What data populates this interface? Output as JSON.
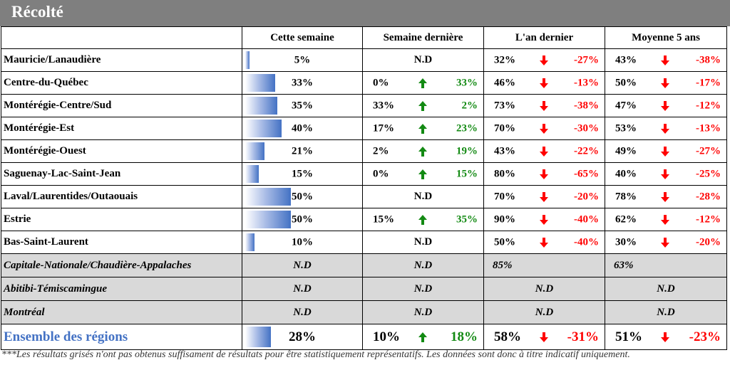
{
  "title": "Récolté",
  "headers": {
    "cette_semaine": "Cette semaine",
    "semaine_derniere": "Semaine dernière",
    "an_dernier": "L'an dernier",
    "moyenne_5_ans": "Moyenne 5 ans"
  },
  "rows": [
    {
      "region": "Mauricie/Lanaudière",
      "cette": "5%",
      "cette_value": 5,
      "sd": null,
      "sd_delta": null,
      "an": "32%",
      "an_delta": "-27%",
      "m5": "43%",
      "m5_delta": "-38%"
    },
    {
      "region": "Centre-du-Québec",
      "cette": "33%",
      "cette_value": 33,
      "sd": "0%",
      "sd_delta": "33%",
      "an": "46%",
      "an_delta": "-13%",
      "m5": "50%",
      "m5_delta": "-17%"
    },
    {
      "region": "Montérégie-Centre/Sud",
      "cette": "35%",
      "cette_value": 35,
      "sd": "33%",
      "sd_delta": "2%",
      "an": "73%",
      "an_delta": "-38%",
      "m5": "47%",
      "m5_delta": "-12%"
    },
    {
      "region": "Montérégie-Est",
      "cette": "40%",
      "cette_value": 40,
      "sd": "17%",
      "sd_delta": "23%",
      "an": "70%",
      "an_delta": "-30%",
      "m5": "53%",
      "m5_delta": "-13%"
    },
    {
      "region": "Montérégie-Ouest",
      "cette": "21%",
      "cette_value": 21,
      "sd": "2%",
      "sd_delta": "19%",
      "an": "43%",
      "an_delta": "-22%",
      "m5": "49%",
      "m5_delta": "-27%"
    },
    {
      "region": "Saguenay-Lac-Saint-Jean",
      "cette": "15%",
      "cette_value": 15,
      "sd": "0%",
      "sd_delta": "15%",
      "an": "80%",
      "an_delta": "-65%",
      "m5": "40%",
      "m5_delta": "-25%"
    },
    {
      "region": "Laval/Laurentides/Outaouais",
      "cette": "50%",
      "cette_value": 50,
      "sd": null,
      "sd_delta": null,
      "an": "70%",
      "an_delta": "-20%",
      "m5": "78%",
      "m5_delta": "-28%"
    },
    {
      "region": "Estrie",
      "cette": "50%",
      "cette_value": 50,
      "sd": "15%",
      "sd_delta": "35%",
      "an": "90%",
      "an_delta": "-40%",
      "m5": "62%",
      "m5_delta": "-12%"
    },
    {
      "region": "Bas-Saint-Laurent",
      "cette": "10%",
      "cette_value": 10,
      "sd": null,
      "sd_delta": null,
      "an": "50%",
      "an_delta": "-40%",
      "m5": "30%",
      "m5_delta": "-20%"
    }
  ],
  "nd_label": "N.D",
  "grey_rows": [
    {
      "region": "Capitale-Nationale/Chaudière-Appalaches",
      "cette": "N.D",
      "sd": "N.D",
      "an": "85%",
      "m5": "63%"
    },
    {
      "region": "Abitibi-Témiscamingue",
      "cette": "N.D",
      "sd": "N.D",
      "an": "N.D",
      "m5": "N.D"
    },
    {
      "region": "Montréal",
      "cette": "N.D",
      "sd": "N.D",
      "an": "N.D",
      "m5": "N.D"
    }
  ],
  "total": {
    "region": "Ensemble des régions",
    "cette": "28%",
    "cette_value": 28,
    "sd": "10%",
    "sd_delta": "18%",
    "an": "58%",
    "an_delta": "-31%",
    "m5": "51%",
    "m5_delta": "-23%"
  },
  "footnote": "***Les résultats grisés n'ont pas obtenus suffisament de résultats pour être statistiquement représentatifs. Les données sont donc à titre indicatif uniquement.",
  "colors": {
    "title_bg": "#7f7f7f",
    "bar": "#4472c4",
    "up": "#138a13",
    "down": "#ff0000",
    "grey_row": "#d9d9d9"
  },
  "icons": {
    "up": "arrow-up-icon",
    "down": "arrow-down-icon"
  }
}
